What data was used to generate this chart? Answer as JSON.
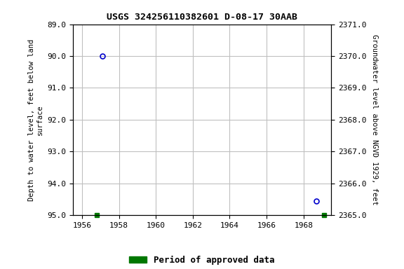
{
  "title": "USGS 324256110382601 D-08-17 30AAB",
  "ylabel_left": "Depth to water level, feet below land\nsurface",
  "ylabel_right": "Groundwater level above NGVD 1929, feet",
  "xlim": [
    1955.5,
    1969.5
  ],
  "ylim_left": [
    89.0,
    95.0
  ],
  "ylim_left_inverted": true,
  "ylim_right_top": 2371.0,
  "ylim_right_bottom": 2365.0,
  "xticks": [
    1956,
    1958,
    1960,
    1962,
    1964,
    1966,
    1968
  ],
  "yticks_left": [
    89.0,
    90.0,
    91.0,
    92.0,
    93.0,
    94.0,
    95.0
  ],
  "yticks_right": [
    2371.0,
    2370.0,
    2369.0,
    2368.0,
    2367.0,
    2366.0,
    2365.0
  ],
  "blue_points_x": [
    1957.1,
    1968.7
  ],
  "blue_points_y": [
    90.0,
    94.55
  ],
  "green_points_x": [
    1956.8,
    1969.1
  ],
  "green_points_y": [
    95.0,
    95.0
  ],
  "blue_color": "#0000cc",
  "green_color": "#007700",
  "background_color": "#ffffff",
  "grid_color": "#c0c0c0",
  "legend_label": "Period of approved data",
  "title_fontsize": 9.5,
  "axis_label_fontsize": 7.5,
  "tick_fontsize": 8
}
